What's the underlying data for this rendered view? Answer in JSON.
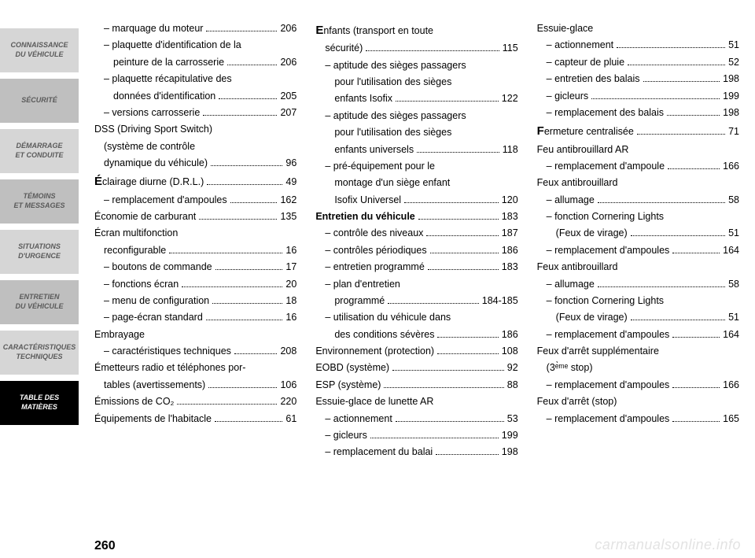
{
  "sidebar": {
    "items": [
      {
        "l1": "CONNAISSANCE",
        "l2": "DU VÉHICULE",
        "active": false
      },
      {
        "l1": "SÉCURITÉ",
        "l2": "",
        "active": false
      },
      {
        "l1": "DÉMARRAGE",
        "l2": "ET CONDUITE",
        "active": false
      },
      {
        "l1": "TÉMOINS",
        "l2": "ET MESSAGES",
        "active": false
      },
      {
        "l1": "SITUATIONS",
        "l2": "D'URGENCE",
        "active": false
      },
      {
        "l1": "ENTRETIEN",
        "l2": "DU VÉHICULE",
        "active": false
      },
      {
        "l1": "CARACTÉRISTIQUES",
        "l2": "TECHNIQUES",
        "active": false
      },
      {
        "l1": "TABLE  DES",
        "l2": "MATIÈRES",
        "active": true
      }
    ]
  },
  "page_number": "260",
  "watermark": "carmanualsonline.info",
  "cols": [
    [
      {
        "t": "– marquage du moteur",
        "p": "206",
        "sub": true
      },
      {
        "t": "– plaquette d'identification de la",
        "sub": true,
        "cont": true
      },
      {
        "t": "peinture de la carrosserie",
        "p": "206",
        "sub2": true
      },
      {
        "t": "– plaquette récapitulative des",
        "sub": true,
        "cont": true
      },
      {
        "t": "données d'identification",
        "p": "205",
        "sub2": true
      },
      {
        "t": "– versions carrosserie",
        "p": "207",
        "sub": true
      },
      {
        "t": "DSS (Driving Sport Switch)",
        "cont": true
      },
      {
        "t": "(système de contrôle",
        "sub": true,
        "cont": true
      },
      {
        "t": "dynamique du véhicule)",
        "p": "96",
        "sub": true
      },
      {
        "t": "Éclairage diurne (D.R.L.)",
        "p": "49",
        "big": "É"
      },
      {
        "t": "– remplacement d'ampoules",
        "p": "162",
        "sub": true
      },
      {
        "t": "Économie de carburant",
        "p": "135"
      },
      {
        "t": "Écran multifonction",
        "cont": true
      },
      {
        "t": "reconfigurable",
        "p": "16",
        "sub": true
      },
      {
        "t": "– boutons de commande",
        "p": "17",
        "sub": true
      },
      {
        "t": "– fonctions écran",
        "p": "20",
        "sub": true
      },
      {
        "t": "– menu de configuration",
        "p": "18",
        "sub": true
      },
      {
        "t": "– page-écran standard",
        "p": "16",
        "sub": true
      },
      {
        "t": "Embrayage"
      },
      {
        "t": "– caractéristiques techniques",
        "p": "208",
        "sub": true
      },
      {
        "t": "Émetteurs radio et téléphones por-",
        "cont": true
      },
      {
        "t": "tables (avertissements)",
        "p": "106",
        "sub": true
      },
      {
        "t": "Émissions de CO₂",
        "p": "220"
      },
      {
        "t": "Équipements de l'habitacle",
        "p": "61"
      }
    ],
    [
      {
        "t": "Enfants (transport en toute",
        "big": "E",
        "cont": true
      },
      {
        "t": "sécurité)",
        "p": "115",
        "sub": true
      },
      {
        "t": "– aptitude des sièges passagers",
        "sub": true,
        "cont": true
      },
      {
        "t": "pour l'utilisation des sièges",
        "sub2": true,
        "cont": true
      },
      {
        "t": "enfants Isofix",
        "p": "122",
        "sub2": true
      },
      {
        "t": "– aptitude des sièges passagers",
        "sub": true,
        "cont": true
      },
      {
        "t": "pour l'utilisation des sièges",
        "sub2": true,
        "cont": true
      },
      {
        "t": "enfants universels",
        "p": "118",
        "sub2": true
      },
      {
        "t": "– pré-équipement pour le",
        "sub": true,
        "cont": true
      },
      {
        "t": "montage d'un siège enfant",
        "sub2": true,
        "cont": true
      },
      {
        "t": "Isofix Universel",
        "p": "120",
        "sub2": true
      },
      {
        "t": "Entretien du véhicule",
        "p": "183",
        "bold": true
      },
      {
        "t": "– contrôle des niveaux",
        "p": "187",
        "sub": true
      },
      {
        "t": "– contrôles périodiques",
        "p": "186",
        "sub": true
      },
      {
        "t": "– entretien programmé",
        "p": "183",
        "sub": true
      },
      {
        "t": "– plan d'entretien",
        "sub": true,
        "cont": true
      },
      {
        "t": "programmé",
        "p": "184-185",
        "sub2": true
      },
      {
        "t": "– utilisation du véhicule dans",
        "sub": true,
        "cont": true
      },
      {
        "t": "des conditions sévères",
        "p": "186",
        "sub2": true
      },
      {
        "t": "Environnement (protection)",
        "p": "108"
      },
      {
        "t": "EOBD (système)",
        "p": "92"
      },
      {
        "t": "ESP (système)",
        "p": "88"
      },
      {
        "t": "Essuie-glace de lunette AR"
      },
      {
        "t": "– actionnement",
        "p": "53",
        "sub": true
      },
      {
        "t": "– gicleurs",
        "p": "199",
        "sub": true
      },
      {
        "t": "– remplacement du balai",
        "p": "198",
        "sub": true
      }
    ],
    [
      {
        "t": "Essuie-glace"
      },
      {
        "t": "– actionnement",
        "p": "51",
        "sub": true
      },
      {
        "t": "– capteur de pluie",
        "p": "52",
        "sub": true
      },
      {
        "t": "– entretien des balais",
        "p": "198",
        "sub": true
      },
      {
        "t": "– gicleurs",
        "p": "199",
        "sub": true
      },
      {
        "t": "– remplacement des balais",
        "p": "198",
        "sub": true
      },
      {
        "t": "Fermeture centralisée",
        "p": "71",
        "big": "F"
      },
      {
        "t": "Feu antibrouillard AR"
      },
      {
        "t": "– remplacement d'ampoule",
        "p": "166",
        "sub": true
      },
      {
        "t": "Feux antibrouillard"
      },
      {
        "t": "– allumage",
        "p": "58",
        "sub": true
      },
      {
        "t": "– fonction Cornering Lights",
        "sub": true,
        "cont": true
      },
      {
        "t": "(Feux de virage)",
        "p": "51",
        "sub2": true
      },
      {
        "t": "– remplacement d'ampoules",
        "p": "164",
        "sub": true
      },
      {
        "t": "Feux antibrouillard"
      },
      {
        "t": "– allumage",
        "p": "58",
        "sub": true
      },
      {
        "t": "– fonction Cornering Lights",
        "sub": true,
        "cont": true
      },
      {
        "t": "(Feux de virage)",
        "p": "51",
        "sub2": true
      },
      {
        "t": "– remplacement d'ampoules",
        "p": "164",
        "sub": true
      },
      {
        "t": "Feux d'arrêt supplémentaire",
        "cont": true
      },
      {
        "t": "(3ᵉ̀ᵐᵉ stop)",
        "sub": true
      },
      {
        "t": "– remplacement d'ampoules",
        "p": "166",
        "sub": true
      },
      {
        "t": "Feux d'arrêt (stop)"
      },
      {
        "t": "– remplacement d'ampoules",
        "p": "165",
        "sub": true
      }
    ]
  ]
}
